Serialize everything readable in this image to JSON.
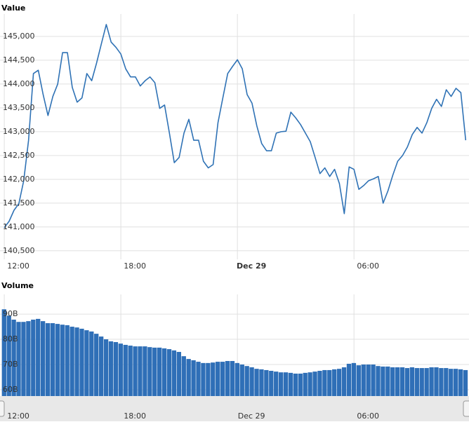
{
  "chart_data": [
    {
      "type": "line",
      "title": "Value",
      "color": "#2f72b5",
      "grid": true,
      "xlim": [
        -0.22,
        23.92
      ],
      "xticks": [
        {
          "value": 0,
          "label": "12:00"
        },
        {
          "value": 6,
          "label": "18:00"
        },
        {
          "value": 12,
          "label": "Dec 29"
        },
        {
          "value": 18,
          "label": "06:00"
        }
      ],
      "ylim": [
        140320,
        145470
      ],
      "yticks": [
        {
          "value": 140500,
          "label": "140,500"
        },
        {
          "value": 141000,
          "label": "141,000"
        },
        {
          "value": 141500,
          "label": "141,500"
        },
        {
          "value": 142000,
          "label": "142,000"
        },
        {
          "value": 142500,
          "label": "142,500"
        },
        {
          "value": 143000,
          "label": "143,000"
        },
        {
          "value": 143500,
          "label": "143,500"
        },
        {
          "value": 144000,
          "label": "144,000"
        },
        {
          "value": 144500,
          "label": "144,500"
        },
        {
          "value": 145000,
          "label": "145,000"
        }
      ],
      "x": [
        0,
        0.25,
        0.5,
        0.75,
        1,
        1.25,
        1.5,
        1.75,
        2,
        2.25,
        2.5,
        2.75,
        3,
        3.25,
        3.5,
        3.75,
        4,
        4.25,
        4.5,
        4.75,
        5,
        5.25,
        5.5,
        5.75,
        6,
        6.25,
        6.5,
        6.75,
        7,
        7.25,
        7.5,
        7.75,
        8,
        8.25,
        8.5,
        8.75,
        9,
        9.25,
        9.5,
        9.75,
        10,
        10.25,
        10.5,
        10.75,
        11,
        11.25,
        11.5,
        11.75,
        12,
        12.25,
        12.5,
        12.75,
        13,
        13.25,
        13.5,
        13.75,
        14,
        14.25,
        14.5,
        14.75,
        15,
        15.25,
        15.5,
        15.75,
        16,
        16.25,
        16.5,
        16.75,
        17,
        17.25,
        17.5,
        17.75,
        18,
        18.25,
        18.5,
        18.75,
        19,
        19.25,
        19.5,
        19.75,
        20,
        20.25,
        20.5,
        20.75,
        21,
        21.25,
        21.5,
        21.75,
        22,
        22.25,
        22.5,
        22.75,
        23,
        23.25,
        23.5,
        23.75
      ],
      "values": [
        140985,
        141120,
        141350,
        141490,
        141970,
        142820,
        144220,
        144290,
        143780,
        143340,
        143740,
        144000,
        144660,
        144660,
        143930,
        143620,
        143710,
        144220,
        144070,
        144440,
        144850,
        145250,
        144880,
        144770,
        144630,
        144320,
        144150,
        144150,
        143960,
        144070,
        144150,
        144030,
        143490,
        143560,
        142970,
        142350,
        142460,
        142970,
        143260,
        142820,
        142820,
        142380,
        142240,
        142310,
        143190,
        143710,
        144220,
        144370,
        144510,
        144320,
        143780,
        143600,
        143120,
        142750,
        142600,
        142600,
        142970,
        143000,
        143010,
        143410,
        143290,
        143150,
        142970,
        142790,
        142460,
        142120,
        142240,
        142060,
        142210,
        141910,
        141280,
        142260,
        142210,
        141790,
        141870,
        141970,
        142010,
        142060,
        141500,
        141760,
        142090,
        142380,
        142500,
        142680,
        142940,
        143090,
        142970,
        143190,
        143490,
        143680,
        143530,
        143880,
        143740,
        143910,
        143820,
        142820
      ]
    },
    {
      "type": "bar",
      "title": "Volume",
      "color": "#2f6fb7",
      "grid": true,
      "xlim": [
        -0.22,
        23.92
      ],
      "xticks": [
        {
          "value": 0,
          "label": "12:00"
        },
        {
          "value": 6,
          "label": "18:00"
        },
        {
          "value": 12,
          "label": "Dec 29"
        },
        {
          "value": 18,
          "label": "06:00"
        }
      ],
      "ylim": [
        57.5,
        97.8
      ],
      "yticks": [
        {
          "value": 60,
          "label": "60B"
        },
        {
          "value": 70,
          "label": "70B"
        },
        {
          "value": 80,
          "label": "80B"
        },
        {
          "value": 90,
          "label": "90B"
        }
      ],
      "x": [
        0,
        0.25,
        0.5,
        0.75,
        1,
        1.25,
        1.5,
        1.75,
        2,
        2.25,
        2.5,
        2.75,
        3,
        3.25,
        3.5,
        3.75,
        4,
        4.25,
        4.5,
        4.75,
        5,
        5.25,
        5.5,
        5.75,
        6,
        6.25,
        6.5,
        6.75,
        7,
        7.25,
        7.5,
        7.75,
        8,
        8.25,
        8.5,
        8.75,
        9,
        9.25,
        9.5,
        9.75,
        10,
        10.25,
        10.5,
        10.75,
        11,
        11.25,
        11.5,
        11.75,
        12,
        12.25,
        12.5,
        12.75,
        13,
        13.25,
        13.5,
        13.75,
        14,
        14.25,
        14.5,
        14.75,
        15,
        15.25,
        15.5,
        15.75,
        16,
        16.25,
        16.5,
        16.75,
        17,
        17.25,
        17.5,
        17.75,
        18,
        18.25,
        18.5,
        18.75,
        19,
        19.25,
        19.5,
        19.75,
        20,
        20.25,
        20.5,
        20.75,
        21,
        21.25,
        21.5,
        21.75,
        22,
        22.25,
        22.5,
        22.75,
        23,
        23.25,
        23.5,
        23.75
      ],
      "values": [
        91.9,
        89.4,
        87.8,
        86.9,
        86.9,
        87.2,
        87.8,
        88.1,
        87.2,
        86.4,
        86.4,
        86.1,
        85.8,
        85.6,
        85.0,
        84.7,
        84.2,
        83.6,
        83.1,
        82.2,
        81.1,
        80.0,
        79.2,
        78.9,
        78.3,
        77.8,
        77.5,
        77.2,
        77.2,
        77.2,
        76.9,
        76.7,
        76.7,
        76.4,
        76.1,
        75.6,
        75.0,
        73.3,
        72.2,
        71.7,
        71.1,
        70.6,
        70.6,
        70.8,
        71.1,
        71.1,
        71.4,
        71.4,
        70.6,
        70.0,
        69.4,
        68.9,
        68.3,
        68.1,
        67.8,
        67.5,
        67.2,
        66.9,
        66.9,
        66.7,
        66.4,
        66.4,
        66.7,
        66.9,
        67.2,
        67.5,
        67.8,
        67.8,
        68.1,
        68.3,
        68.9,
        70.3,
        70.6,
        69.7,
        70.0,
        70.0,
        70.0,
        69.4,
        69.2,
        69.2,
        68.9,
        68.9,
        68.9,
        68.6,
        68.9,
        68.6,
        68.6,
        68.6,
        68.9,
        68.9,
        68.6,
        68.6,
        68.3,
        68.3,
        68.1,
        67.8
      ]
    }
  ]
}
